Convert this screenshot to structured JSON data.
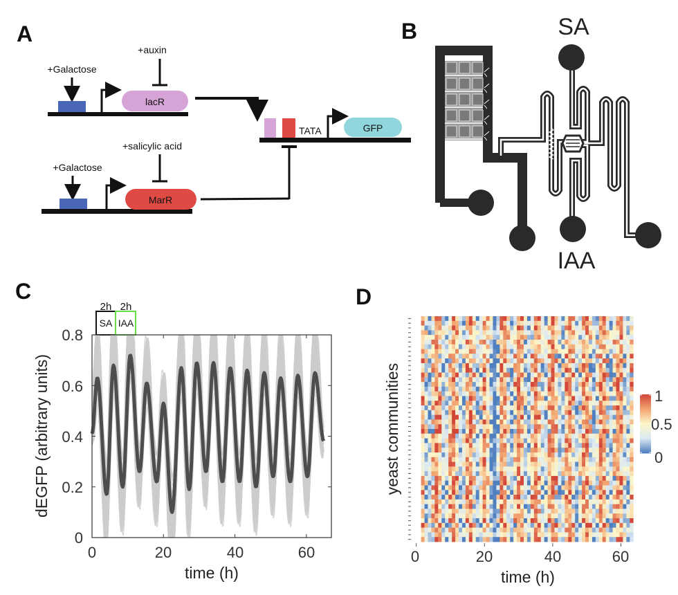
{
  "panels": {
    "a": "A",
    "b": "B",
    "c": "C",
    "d": "D"
  },
  "panel_a": {
    "top_inducer": "+Galactose",
    "top_repressor_input": "+auxin",
    "top_gene": "lacR",
    "bottom_inducer": "+Galactose",
    "bottom_repressor_input": "+salicylic acid",
    "bottom_gene": "MarR",
    "promoter_element": "TATA",
    "reporter": "GFP",
    "colors": {
      "promoter_box": "#4a66b8",
      "lacR": "#d6a4d6",
      "MarR": "#e04a45",
      "GFP": "#92d6dd"
    }
  },
  "panel_b": {
    "top_inlet": "SA",
    "bottom_inlet": "IAA"
  },
  "chart_data": [
    {
      "panel": "C",
      "type": "line",
      "xlabel": "time (h)",
      "ylabel": "dEGFP (arbitrary units)",
      "xlim": [
        0,
        67
      ],
      "ylim": [
        0,
        0.8
      ],
      "xticks": [
        "0",
        "20",
        "40",
        "60"
      ],
      "yticks": [
        "0",
        "0.2",
        "0.4",
        "0.6",
        "0.8"
      ],
      "pulse_annotations": [
        {
          "duration": "2h",
          "label": "SA",
          "color": "#111111"
        },
        {
          "duration": "2h",
          "label": "IAA",
          "color": "#66dd44"
        }
      ],
      "series": [
        {
          "name": "mean",
          "color": "#4d4d4d",
          "points": [
            [
              0,
              0.41
            ],
            [
              1.5,
              0.63
            ],
            [
              4.1,
              0.17
            ],
            [
              6,
              0.68
            ],
            [
              8.6,
              0.2
            ],
            [
              10.7,
              0.72
            ],
            [
              13.3,
              0.26
            ],
            [
              15.3,
              0.61
            ],
            [
              18.1,
              0.22
            ],
            [
              20,
              0.53
            ],
            [
              22.4,
              0.1
            ],
            [
              25,
              0.67
            ],
            [
              27.2,
              0.19
            ],
            [
              29.3,
              0.69
            ],
            [
              31.9,
              0.26
            ],
            [
              34,
              0.69
            ],
            [
              36.5,
              0.22
            ],
            [
              38.7,
              0.67
            ],
            [
              41.3,
              0.22
            ],
            [
              43.4,
              0.66
            ],
            [
              45.9,
              0.2
            ],
            [
              48.2,
              0.65
            ],
            [
              50.7,
              0.24
            ],
            [
              52.8,
              0.63
            ],
            [
              55.5,
              0.22
            ],
            [
              57.6,
              0.64
            ],
            [
              60.3,
              0.24
            ],
            [
              62.4,
              0.65
            ],
            [
              64.9,
              0.38
            ]
          ]
        },
        {
          "name": "individual communities",
          "color": "#cccccc",
          "count": 40
        }
      ]
    },
    {
      "panel": "D",
      "type": "heatmap",
      "xlabel": "time (h)",
      "ylabel": "yeast communities",
      "xlim": [
        0,
        63.6
      ],
      "xticks": [
        "0",
        "20",
        "40",
        "60"
      ],
      "rows": 48,
      "columns": 62,
      "period_h": 4.85,
      "colorbar": {
        "min": 0,
        "max": 1,
        "ticks": [
          "0",
          "0.5",
          "1"
        ],
        "colors": [
          "#4f7fbf",
          "#dce9f2",
          "#fdf6c8",
          "#f2a672",
          "#d2473a"
        ]
      }
    }
  ]
}
